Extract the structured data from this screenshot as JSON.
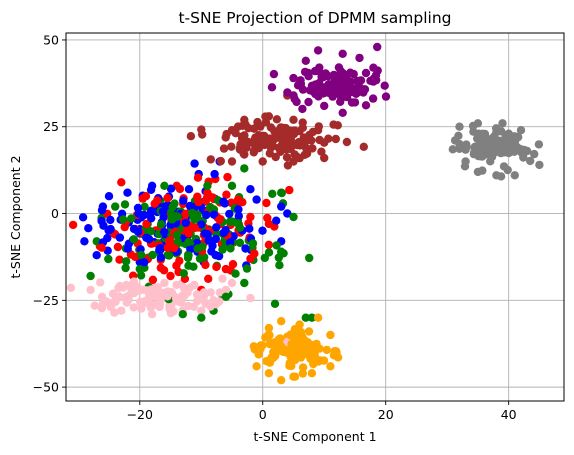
{
  "chart_data": {
    "type": "scatter",
    "title": "t-SNE Projection of DPMM sampling",
    "xlabel": "t-SNE Component 1",
    "ylabel": "t-SNE Component 2",
    "xlim": [
      -32,
      49
    ],
    "ylim": [
      -54,
      52
    ],
    "xticks": [
      -20,
      0,
      20,
      40
    ],
    "yticks": [
      -50,
      -25,
      0,
      25,
      50
    ],
    "grid": true,
    "clusters": [
      {
        "color": "#0000ff",
        "center": [
          -14,
          -3
        ],
        "spread": [
          7,
          6
        ],
        "count": 120,
        "points": [
          [
            -29,
            -8
          ],
          [
            -26,
            2
          ],
          [
            -25,
            5
          ],
          [
            -22,
            6
          ],
          [
            -18,
            8
          ],
          [
            -12,
            7
          ],
          [
            -7,
            15
          ],
          [
            -2,
            7
          ],
          [
            -1,
            4
          ],
          [
            3,
            2
          ],
          [
            4,
            0
          ],
          [
            3,
            -8
          ],
          [
            -14,
            -11
          ],
          [
            -20,
            -14
          ],
          [
            -27,
            -12
          ]
        ]
      },
      {
        "color": "#ff0000",
        "center": [
          -12,
          -4
        ],
        "spread": [
          7,
          6
        ],
        "count": 120,
        "points": [
          [
            -23,
            9
          ],
          [
            -19,
            5
          ],
          [
            -14,
            8
          ],
          [
            -9,
            6
          ],
          [
            -4,
            4
          ],
          [
            -2,
            -1
          ],
          [
            1,
            -3
          ],
          [
            1,
            -9
          ],
          [
            -2,
            -13
          ],
          [
            -6,
            -16
          ],
          [
            -10,
            -22
          ],
          [
            -15,
            -18
          ],
          [
            -20,
            -12
          ],
          [
            -24,
            -6
          ]
        ]
      },
      {
        "color": "#008000",
        "center": [
          -12,
          -6
        ],
        "spread": [
          7,
          6
        ],
        "count": 130,
        "points": [
          [
            -28,
            -18
          ],
          [
            -27,
            -8
          ],
          [
            -24,
            2
          ],
          [
            -16,
            8
          ],
          [
            -9,
            8
          ],
          [
            -5,
            8
          ],
          [
            -3,
            13
          ],
          [
            3,
            6
          ],
          [
            5,
            -1
          ],
          [
            3,
            -11
          ],
          [
            -3,
            -20
          ],
          [
            -6,
            -24
          ],
          [
            -8,
            -28
          ],
          [
            -10,
            -30
          ],
          [
            -13,
            -29
          ],
          [
            -20,
            -16
          ],
          [
            2,
            -26
          ],
          [
            7,
            -30
          ],
          [
            8,
            -30
          ]
        ]
      },
      {
        "color": "#ffc0cb",
        "center": [
          -17,
          -24
        ],
        "spread": [
          5,
          2.5
        ],
        "count": 110,
        "points": [
          [
            -28,
            -22
          ],
          [
            -26,
            -26
          ],
          [
            -23,
            -28
          ],
          [
            -18,
            -29
          ],
          [
            -13,
            -28
          ],
          [
            -10,
            -28
          ],
          [
            -8,
            -25
          ],
          [
            -6,
            -22
          ],
          [
            -5,
            -20
          ],
          [
            -16,
            -20
          ],
          [
            -21,
            -20
          ],
          [
            4,
            -37
          ],
          [
            9,
            -30
          ]
        ]
      },
      {
        "color": "#a52a2a",
        "center": [
          2,
          21
        ],
        "spread": [
          5,
          2.8
        ],
        "count": 120,
        "points": [
          [
            -5,
            24
          ],
          [
            -5,
            15
          ],
          [
            -3,
            27
          ],
          [
            1,
            28
          ],
          [
            5,
            27
          ],
          [
            9,
            24
          ],
          [
            10,
            16
          ],
          [
            5,
            15
          ],
          [
            0,
            15
          ],
          [
            -3,
            17
          ],
          [
            4,
            34
          ]
        ]
      },
      {
        "color": "#800080",
        "center": [
          12,
          37
        ],
        "spread": [
          4,
          3.2
        ],
        "count": 100,
        "points": [
          [
            5,
            39
          ],
          [
            5,
            34
          ],
          [
            7,
            44
          ],
          [
            9,
            47
          ],
          [
            13,
            46
          ],
          [
            18,
            42
          ],
          [
            18,
            38
          ],
          [
            15,
            32
          ],
          [
            13,
            29
          ],
          [
            10,
            31
          ]
        ]
      },
      {
        "color": "#808080",
        "center": [
          38,
          19
        ],
        "spread": [
          3.2,
          3
        ],
        "count": 100,
        "points": [
          [
            32,
            25
          ],
          [
            35,
            26
          ],
          [
            39,
            26
          ],
          [
            42,
            24
          ],
          [
            43,
            18
          ],
          [
            45,
            14
          ],
          [
            41,
            11
          ],
          [
            38,
            11
          ],
          [
            35,
            12
          ],
          [
            33,
            15
          ],
          [
            32,
            20
          ]
        ]
      },
      {
        "color": "#ffa500",
        "center": [
          5,
          -39
        ],
        "spread": [
          3.5,
          3
        ],
        "count": 100,
        "points": [
          [
            -1,
            -39
          ],
          [
            -1,
            -44
          ],
          [
            1,
            -46
          ],
          [
            3,
            -48
          ],
          [
            5,
            -47
          ],
          [
            8,
            -46
          ],
          [
            11,
            -44
          ],
          [
            12,
            -40
          ],
          [
            11,
            -35
          ],
          [
            9,
            -30
          ],
          [
            6,
            -32
          ],
          [
            3,
            -31
          ],
          [
            1,
            -33
          ]
        ]
      }
    ]
  }
}
